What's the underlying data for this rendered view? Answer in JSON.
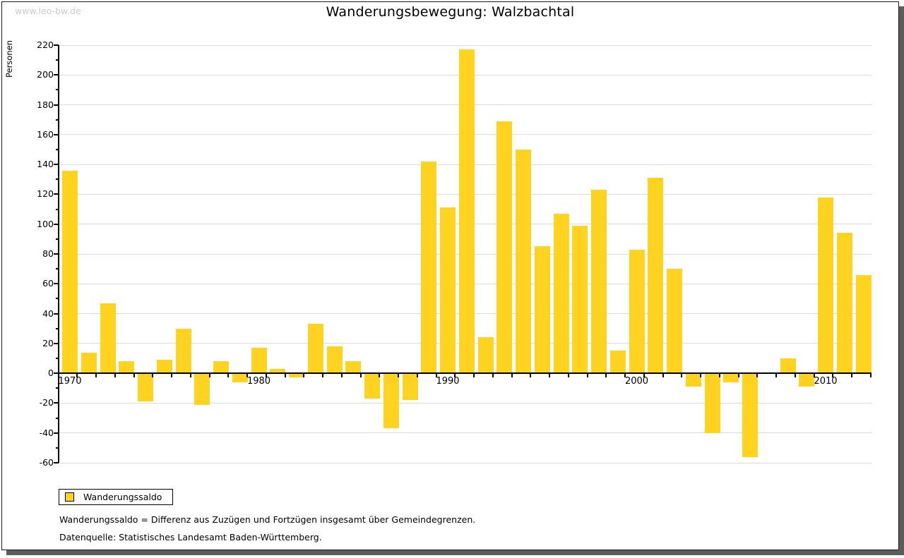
{
  "watermark": "www.leo-bw.de",
  "title": "Wanderungsbewegung: Walzbachtal",
  "legend": {
    "label": "Wanderungssaldo",
    "swatch_color": "#FFD320"
  },
  "footnotes": [
    "Wanderungssaldo = Differenz aus Zuzügen und Fortzügen insgesamt über Gemeindegrenzen.",
    "Datenquelle: Statistisches Landesamt Baden-Württemberg."
  ],
  "colors": {
    "bar": "#FFD320",
    "gridline": "#dcdcdc",
    "axis": "#000000",
    "watermark": "#cccccc"
  },
  "chart_data": {
    "type": "bar",
    "title": "Wanderungsbewegung: Walzbachtal",
    "xlabel": "",
    "ylabel": "Personen",
    "ylim": [
      -60,
      220
    ],
    "ytick_step": 20,
    "ytick_minor_step": 10,
    "grid": true,
    "legend_position": "bottom-left",
    "series_name": "Wanderungssaldo",
    "categories": [
      1970,
      1971,
      1972,
      1973,
      1974,
      1975,
      1976,
      1977,
      1978,
      1979,
      1980,
      1981,
      1982,
      1983,
      1984,
      1985,
      1986,
      1987,
      1988,
      1989,
      1990,
      1991,
      1992,
      1993,
      1994,
      1995,
      1996,
      1997,
      1998,
      1999,
      2000,
      2001,
      2002,
      2003,
      2004,
      2005,
      2006,
      2007,
      2008,
      2009,
      2010,
      2011,
      2012
    ],
    "values": [
      136,
      14,
      47,
      8,
      -19,
      9,
      30,
      -21,
      8,
      -6,
      17,
      3,
      -3,
      33,
      18,
      8,
      -17,
      -37,
      -18,
      142,
      111,
      217,
      24,
      169,
      150,
      85,
      107,
      99,
      123,
      15,
      83,
      131,
      70,
      -9,
      -40,
      -6,
      -56,
      0,
      10,
      -9,
      118,
      94,
      66
    ],
    "x_decade_labels": [
      "1970",
      "1980",
      "1990",
      "2000",
      "2010"
    ]
  }
}
